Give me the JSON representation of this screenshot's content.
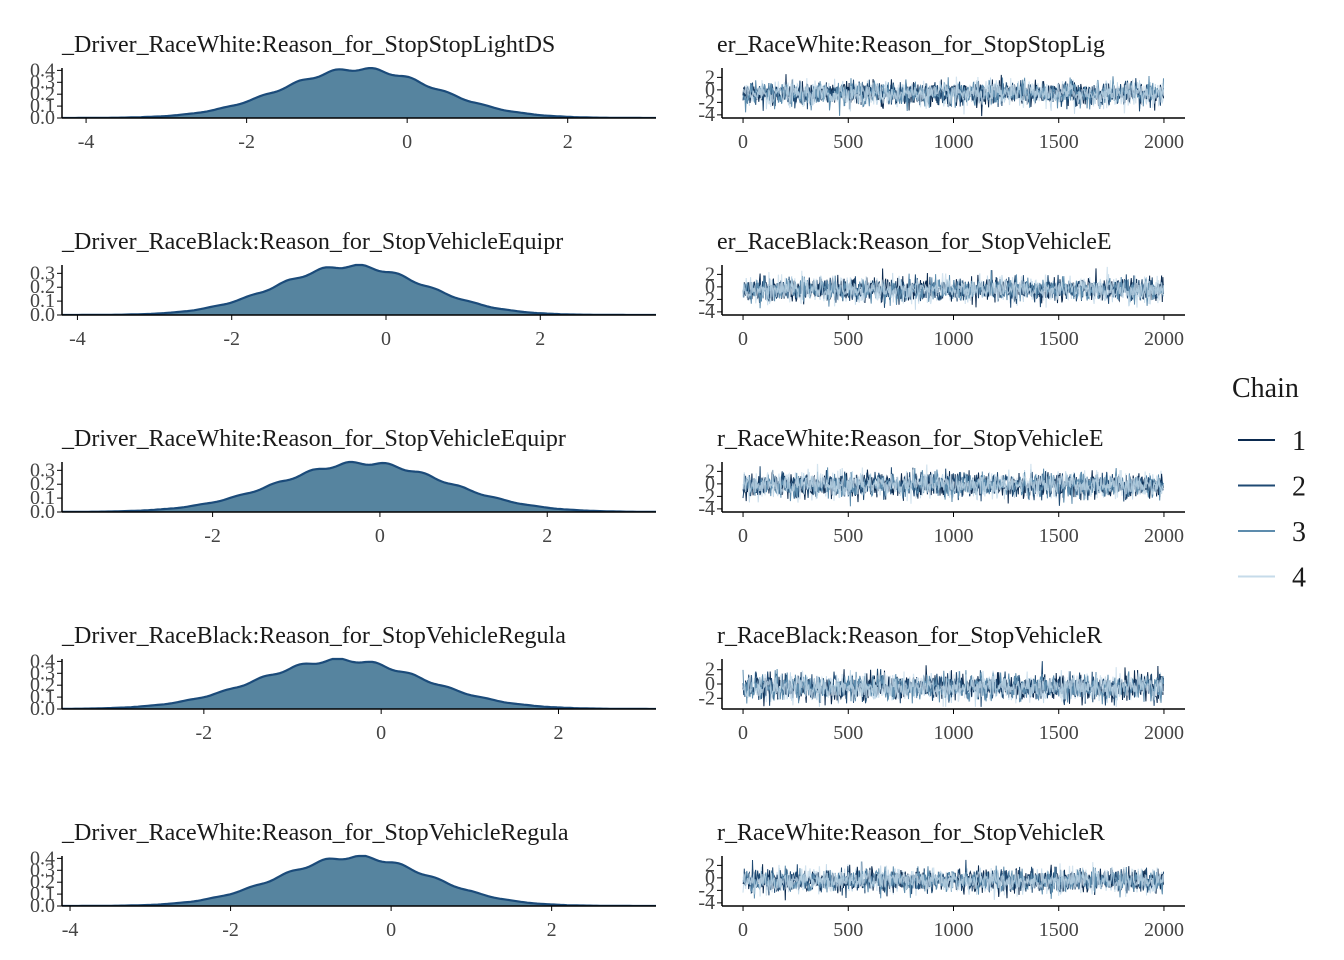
{
  "legend": {
    "title": "Chain",
    "items": [
      {
        "label": "1",
        "color": "#0b2a4f"
      },
      {
        "label": "2",
        "color": "#1f4a73"
      },
      {
        "label": "3",
        "color": "#5d8cad"
      },
      {
        "label": "4",
        "color": "#c6dbea"
      }
    ]
  },
  "colors": {
    "density_fill": "#56849f",
    "density_line": "#1b4b7a",
    "trace_band": "#c6dbea",
    "axis": "#000000"
  },
  "chart_data": [
    {
      "type": "area",
      "title": "_Driver_RaceWhite:Reason_for_StopStopLightDS",
      "xlim": [
        -4.3,
        3.1
      ],
      "xticks": [
        -4,
        -2,
        0,
        2
      ],
      "ylim": [
        0,
        0.42
      ],
      "yticks": [
        "0.0",
        "0.1",
        "0.2",
        "0.3",
        "0.4"
      ],
      "density": {
        "mean": -0.6,
        "sd": 0.95
      }
    },
    {
      "type": "line",
      "title": "er_RaceWhite:Reason_for_StopStopLig",
      "xlim": [
        -100,
        2100
      ],
      "xticks": [
        0,
        500,
        1000,
        1500,
        2000
      ],
      "ylim": [
        -4.5,
        3.5
      ],
      "yticks": [
        "-4",
        "-2",
        "0",
        "2"
      ],
      "series": [
        "1",
        "2",
        "3",
        "4"
      ],
      "iterations": 2000,
      "trace": {
        "mean": -0.6,
        "sd": 0.95
      }
    },
    {
      "type": "area",
      "title": "_Driver_RaceBlack:Reason_for_StopVehicleEquipr",
      "xlim": [
        -4.2,
        3.5
      ],
      "xticks": [
        -4,
        -2,
        0,
        2
      ],
      "ylim": [
        0,
        0.36
      ],
      "yticks": [
        "0.0",
        "0.1",
        "0.2",
        "0.3"
      ],
      "density": {
        "mean": -0.45,
        "sd": 0.95
      }
    },
    {
      "type": "line",
      "title": "er_RaceBlack:Reason_for_StopVehicleE",
      "xlim": [
        -100,
        2100
      ],
      "xticks": [
        0,
        500,
        1000,
        1500,
        2000
      ],
      "ylim": [
        -4.5,
        3.5
      ],
      "yticks": [
        "-4",
        "-2",
        "0",
        "2"
      ],
      "series": [
        "1",
        "2",
        "3",
        "4"
      ],
      "iterations": 2000,
      "trace": {
        "mean": -0.45,
        "sd": 0.95
      }
    },
    {
      "type": "area",
      "title": "_Driver_RaceWhite:Reason_for_StopVehicleEquipr",
      "xlim": [
        -3.8,
        3.3
      ],
      "xticks": [
        -2,
        0,
        2
      ],
      "ylim": [
        0,
        0.36
      ],
      "yticks": [
        "0.0",
        "0.1",
        "0.2",
        "0.3"
      ],
      "density": {
        "mean": -0.2,
        "sd": 1.0
      }
    },
    {
      "type": "line",
      "title": "r_RaceWhite:Reason_for_StopVehicleE",
      "xlim": [
        -100,
        2100
      ],
      "xticks": [
        0,
        500,
        1000,
        1500,
        2000
      ],
      "ylim": [
        -4.5,
        3.5
      ],
      "yticks": [
        "-4",
        "-2",
        "0",
        "2"
      ],
      "series": [
        "1",
        "2",
        "3",
        "4"
      ],
      "iterations": 2000,
      "trace": {
        "mean": -0.2,
        "sd": 1.0
      }
    },
    {
      "type": "area",
      "title": "_Driver_RaceBlack:Reason_for_StopVehicleRegula",
      "xlim": [
        -3.6,
        3.1
      ],
      "xticks": [
        -2,
        0,
        2
      ],
      "ylim": [
        0,
        0.42
      ],
      "yticks": [
        "0.0",
        "0.1",
        "0.2",
        "0.3",
        "0.4"
      ],
      "density": {
        "mean": -0.45,
        "sd": 0.93
      }
    },
    {
      "type": "line",
      "title": "r_RaceBlack:Reason_for_StopVehicleR",
      "xlim": [
        -100,
        2100
      ],
      "xticks": [
        0,
        500,
        1000,
        1500,
        2000
      ],
      "ylim": [
        -3.5,
        3.5
      ],
      "yticks": [
        "-2",
        "0",
        "2"
      ],
      "series": [
        "1",
        "2",
        "3",
        "4"
      ],
      "iterations": 2000,
      "trace": {
        "mean": -0.45,
        "sd": 0.93
      }
    },
    {
      "type": "area",
      "title": "_Driver_RaceWhite:Reason_for_StopVehicleRegula",
      "xlim": [
        -4.1,
        3.3
      ],
      "xticks": [
        -4,
        -2,
        0,
        2
      ],
      "ylim": [
        0,
        0.42
      ],
      "yticks": [
        "0.0",
        "0.1",
        "0.2",
        "0.3",
        "0.4"
      ],
      "density": {
        "mean": -0.45,
        "sd": 0.93
      }
    },
    {
      "type": "line",
      "title": "r_RaceWhite:Reason_for_StopVehicleR",
      "xlim": [
        -100,
        2100
      ],
      "xticks": [
        0,
        500,
        1000,
        1500,
        2000
      ],
      "ylim": [
        -4.5,
        3.5
      ],
      "yticks": [
        "-4",
        "-2",
        "0",
        "2"
      ],
      "series": [
        "1",
        "2",
        "3",
        "4"
      ],
      "iterations": 2000,
      "trace": {
        "mean": -0.45,
        "sd": 0.93
      }
    }
  ]
}
